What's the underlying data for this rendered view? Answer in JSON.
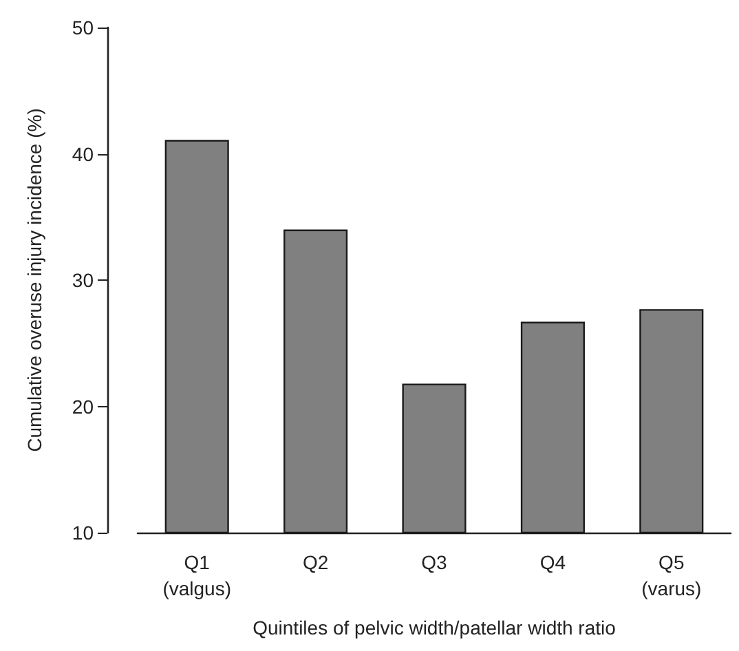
{
  "chart_data": {
    "type": "bar",
    "xlabel": "Quintiles of pelvic width/patellar width ratio",
    "ylabel": "Cumulative overuse injury incidence (%)",
    "categories": [
      "Q1\n(valgus)",
      "Q2",
      "Q3",
      "Q4",
      "Q5\n(varus)"
    ],
    "values": [
      41.1,
      34.0,
      21.8,
      26.7,
      27.7
    ],
    "color": "#808080",
    "ylim": [
      10,
      50
    ],
    "yticks": [
      10,
      20,
      30,
      40,
      50
    ],
    "grid": false
  }
}
